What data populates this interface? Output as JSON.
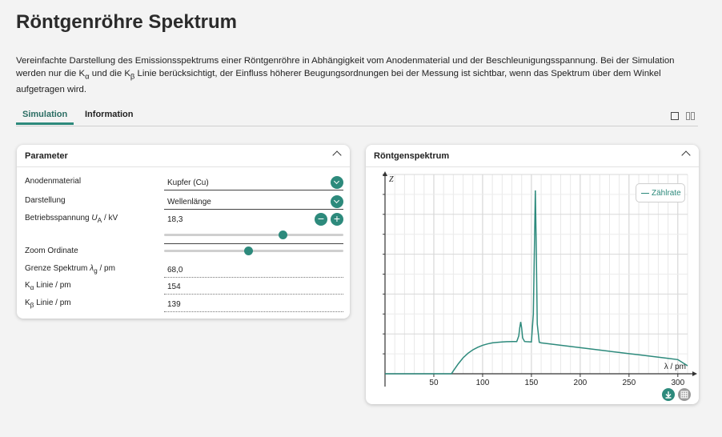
{
  "page": {
    "title": "Röntgenröhre Spektrum",
    "intro": [
      "Vereinfachte Darstellung des Emissionsspektrums einer Röntgenröhre in Abhängigkeit vom Anodenmaterial und der Beschleunigungsspannung. Bei der Simulation werden nur die K",
      "α",
      " und die K",
      "β",
      " Linie berücksichtigt, der Einfluss höherer Beugungsordnungen bei der Messung ist sichtbar, wenn das Spektrum über dem Winkel aufgetragen wird."
    ]
  },
  "tabs": [
    {
      "label": "Simulation",
      "active": true
    },
    {
      "label": "Information",
      "active": false
    }
  ],
  "layout_icons": [
    "single-panel-icon",
    "split-panel-icon"
  ],
  "parameter_panel": {
    "title": "Parameter",
    "anode_label": "Anodenmaterial",
    "anode_value": "Kupfer (Cu)",
    "display_label": "Darstellung",
    "display_value": "Wellenlänge",
    "voltage_label_pre": "Betriebsspannung ",
    "voltage_label_symbol": "U",
    "voltage_label_sub": "A",
    "voltage_label_post": " / kV",
    "voltage_value": "18,3",
    "voltage_slider_fraction": 0.66,
    "minus_symbol": "−",
    "plus_symbol": "+",
    "zoom_label": "Zoom Ordinate",
    "zoom_slider_fraction": 0.47,
    "cutoff_label_pre": "Grenze Spektrum ",
    "cutoff_label_symbol": "λ",
    "cutoff_label_sub": "g",
    "cutoff_label_post": " / pm",
    "cutoff_value": "68,0",
    "kalpha_label_pre": "K",
    "kalpha_label_sub": "α",
    "kalpha_label_post": " Linie / pm",
    "kalpha_value": "154",
    "kbeta_label_pre": "K",
    "kbeta_label_sub": "β",
    "kbeta_label_post": " Linie / pm",
    "kbeta_value": "139"
  },
  "chart_panel": {
    "title": "Röntgenspektrum",
    "legend": "Zählrate",
    "download_icon": "download-icon",
    "table_icon": "table-icon"
  },
  "chart_data": {
    "type": "line",
    "xlabel": "λ / pm",
    "ylabel": "Z",
    "xlim": [
      0,
      310
    ],
    "ylim": [
      0,
      1
    ],
    "x_ticks": [
      50,
      100,
      150,
      200,
      250,
      300
    ],
    "x_minor_step": 10,
    "grid": true,
    "legend_position": "top-right",
    "color": "#2d8a7c",
    "series": [
      {
        "name": "Zählrate",
        "x": [
          0,
          68,
          70,
          75,
          80,
          85,
          90,
          95,
          100,
          105,
          110,
          115,
          120,
          125,
          130,
          135,
          137,
          138,
          139,
          140,
          141,
          143,
          145,
          150,
          152,
          153,
          154,
          155,
          156,
          158,
          160,
          170,
          180,
          190,
          200,
          210,
          220,
          230,
          240,
          250,
          260,
          270,
          280,
          290,
          300,
          310
        ],
        "y": [
          0,
          0,
          0.015,
          0.05,
          0.08,
          0.103,
          0.12,
          0.133,
          0.143,
          0.15,
          0.155,
          0.158,
          0.16,
          0.161,
          0.162,
          0.162,
          0.19,
          0.23,
          0.26,
          0.23,
          0.18,
          0.162,
          0.161,
          0.16,
          0.3,
          0.62,
          0.92,
          0.62,
          0.25,
          0.158,
          0.155,
          0.149,
          0.143,
          0.137,
          0.131,
          0.125,
          0.119,
          0.113,
          0.107,
          0.101,
          0.095,
          0.089,
          0.083,
          0.077,
          0.071,
          0.04
        ]
      }
    ]
  }
}
